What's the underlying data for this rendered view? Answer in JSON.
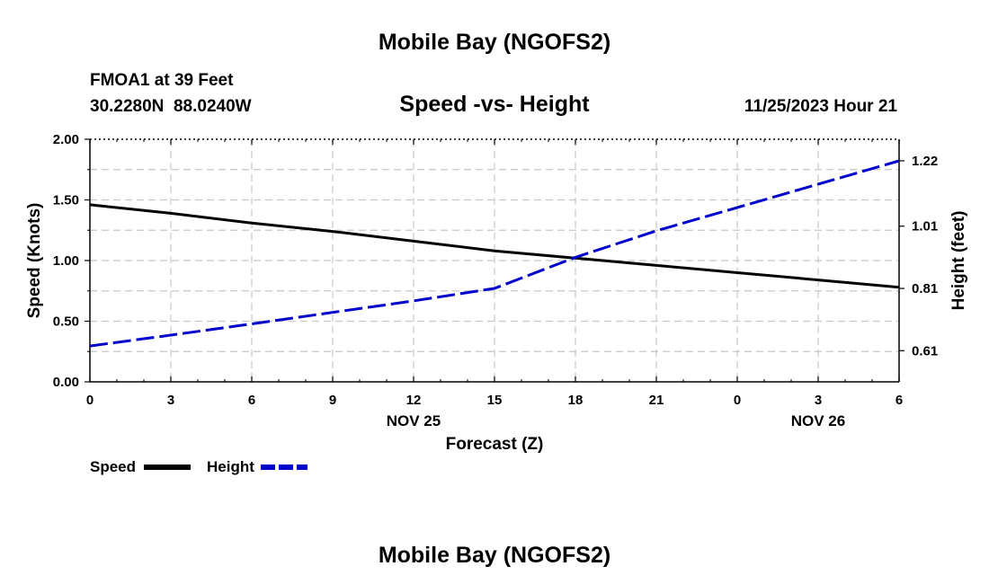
{
  "header": {
    "title": "Mobile Bay (NGOFS2)",
    "station": "FMOA1 at 39 Feet",
    "coords": "30.2280N  88.0240W",
    "chart_title": "Speed -vs- Height",
    "timestamp": "11/25/2023 Hour 21"
  },
  "footer": {
    "title": "Mobile Bay (NGOFS2)"
  },
  "chart_data": {
    "type": "line",
    "title": "Speed -vs- Height",
    "xlabel": "Forecast (Z)",
    "ylabel": "Speed (Knots)",
    "y2label": "Height (feet)",
    "x": [
      0,
      3,
      6,
      9,
      12,
      15,
      18,
      21,
      24,
      27,
      30
    ],
    "x_tick_labels": [
      "0",
      "3",
      "6",
      "9",
      "12",
      "15",
      "18",
      "21",
      "0",
      "3",
      "6"
    ],
    "date_labels": [
      {
        "x": 12,
        "label": "NOV 25"
      },
      {
        "x": 27,
        "label": "NOV 26"
      }
    ],
    "xlim": [
      0,
      30
    ],
    "ylim": [
      0,
      2.0
    ],
    "y_ticks": [
      0,
      0.5,
      1.0,
      1.5,
      2.0
    ],
    "y_tick_labels": [
      "0.00",
      "0.50",
      "1.00",
      "1.50",
      "2.00"
    ],
    "y2lim": [
      0.5098,
      1.2893
    ],
    "y2_ticks": [
      0.61,
      0.81,
      1.01,
      1.22
    ],
    "y2_tick_labels": [
      "0.61",
      "0.81",
      "1.01",
      "1.22"
    ],
    "grid": true,
    "legend_position": "bottom-left",
    "series": [
      {
        "name": "Speed",
        "axis": "left",
        "color": "#000000",
        "style": "solid",
        "x": [
          0,
          3,
          6,
          9,
          12,
          15,
          18,
          21,
          24,
          27,
          30
        ],
        "values": [
          1.46,
          1.39,
          1.31,
          1.24,
          1.16,
          1.08,
          1.02,
          0.96,
          0.9,
          0.84,
          0.78
        ]
      },
      {
        "name": "Height",
        "axis": "right",
        "color": "#0000cc",
        "style": "dashed",
        "x": [
          0,
          3,
          6,
          9,
          12,
          15,
          18,
          21,
          24,
          27,
          30
        ],
        "values": [
          0.625,
          0.66,
          0.696,
          0.733,
          0.77,
          0.81,
          0.91,
          0.995,
          1.07,
          1.145,
          1.22
        ]
      }
    ]
  }
}
